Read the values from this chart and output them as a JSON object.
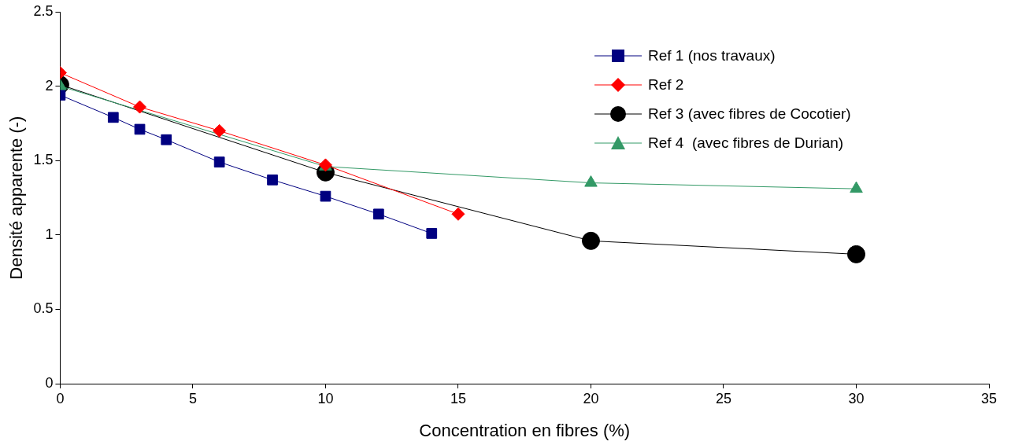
{
  "chart_data": {
    "type": "line",
    "xlabel": "Concentration en fibres (%)",
    "ylabel": "Densité apparente (-)",
    "xlim": [
      0,
      35
    ],
    "xticks": [
      0,
      5,
      10,
      15,
      20,
      25,
      30,
      35
    ],
    "ylim": [
      0,
      2.5
    ],
    "yticks": [
      0,
      0.5,
      1,
      1.5,
      2,
      2.5
    ],
    "grid": false,
    "legend": "top right",
    "line_style": "solid",
    "series": [
      {
        "name": "Ref 1 (nos travaux)",
        "color": "#000080",
        "marker": "square",
        "x": [
          0,
          2,
          3,
          4,
          6,
          8,
          10,
          12,
          14
        ],
        "values": [
          1.94,
          1.79,
          1.71,
          1.64,
          1.49,
          1.37,
          1.26,
          1.14,
          1.01
        ]
      },
      {
        "name": "Ref 2",
        "color": "#ff0000",
        "marker": "diamond",
        "x": [
          0,
          3,
          6,
          10,
          15
        ],
        "values": [
          2.09,
          1.86,
          1.7,
          1.47,
          1.14
        ]
      },
      {
        "name": "Ref 3 (avec fibres de Cocotier)",
        "color": "#000000",
        "marker": "circle",
        "x": [
          0,
          10,
          20,
          30
        ],
        "values": [
          2.01,
          1.42,
          0.96,
          0.87
        ]
      },
      {
        "name": "Ref 4  (avec fibres de Durian)",
        "color": "#339966",
        "marker": "triangle",
        "x": [
          0,
          10,
          20,
          30
        ],
        "values": [
          2.0,
          1.46,
          1.35,
          1.31
        ]
      }
    ]
  }
}
